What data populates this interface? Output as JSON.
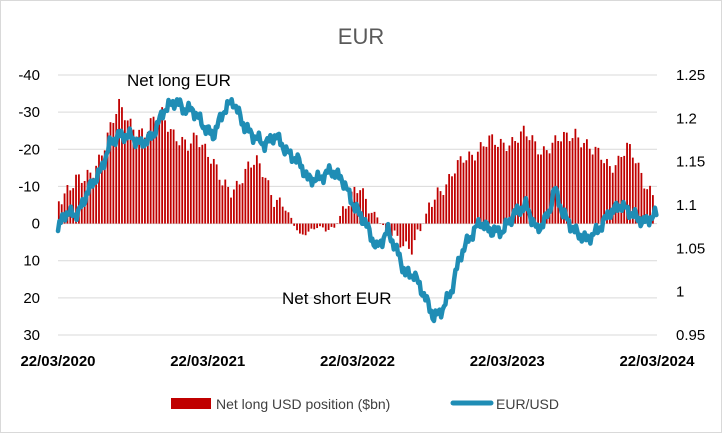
{
  "chart_data": {
    "type": "bar+line",
    "title": "EUR",
    "x_tick_labels": [
      "22/03/2020",
      "22/03/2021",
      "22/03/2022",
      "22/03/2023",
      "22/03/2024"
    ],
    "x_range": [
      "2020-03-22",
      "2024-03-22"
    ],
    "left_axis": {
      "ticks": [
        -40,
        -30,
        -20,
        -10,
        0,
        10,
        20,
        30
      ],
      "tick_labels": [
        "-40",
        "-30",
        "-20",
        "-10",
        "0",
        "10",
        "20",
        "30"
      ],
      "range": [
        -40,
        30
      ],
      "inverted": true
    },
    "right_axis": {
      "ticks": [
        0.95,
        1.0,
        1.05,
        1.1,
        1.15,
        1.2,
        1.25
      ],
      "tick_labels": [
        "0.95",
        "1",
        "1.05",
        "1.1",
        "1.15",
        "1.2",
        "1.25"
      ],
      "range": [
        0.95,
        1.25
      ]
    },
    "annotations": [
      "Net long EUR",
      "Net short EUR"
    ],
    "legend_position": "bottom",
    "gridlines": "horizontal",
    "series": [
      {
        "name": "Net long USD position ($bn)",
        "type": "bar",
        "axis": "left",
        "color": "#c00000",
        "x": [
          "2020-03-24",
          "2020-04-14",
          "2020-05-05",
          "2020-05-26",
          "2020-06-16",
          "2020-07-07",
          "2020-07-28",
          "2020-08-18",
          "2020-09-08",
          "2020-09-29",
          "2020-10-20",
          "2020-11-10",
          "2020-12-01",
          "2020-12-22",
          "2021-01-12",
          "2021-02-02",
          "2021-02-23",
          "2021-03-16",
          "2021-04-06",
          "2021-04-27",
          "2021-05-18",
          "2021-06-08",
          "2021-06-29",
          "2021-07-20",
          "2021-08-10",
          "2021-08-31",
          "2021-09-21",
          "2021-10-12",
          "2021-11-02",
          "2021-11-23",
          "2021-12-14",
          "2022-01-04",
          "2022-01-25",
          "2022-02-15",
          "2022-03-08",
          "2022-03-29",
          "2022-04-19",
          "2022-05-10",
          "2022-05-31",
          "2022-06-21",
          "2022-07-12",
          "2022-08-02",
          "2022-08-23",
          "2022-09-13",
          "2022-10-04",
          "2022-10-25",
          "2022-11-15",
          "2022-12-06",
          "2022-12-27",
          "2023-01-17",
          "2023-02-07",
          "2023-02-28",
          "2023-03-21",
          "2023-04-11",
          "2023-05-02",
          "2023-05-23",
          "2023-06-13",
          "2023-07-04",
          "2023-07-25",
          "2023-08-15",
          "2023-09-05",
          "2023-09-26",
          "2023-10-17",
          "2023-11-07",
          "2023-11-28",
          "2023-12-19",
          "2024-01-09",
          "2024-01-30",
          "2024-02-20",
          "2024-03-12"
        ],
        "values": [
          -6,
          -10,
          -12,
          -11,
          -14,
          -20,
          -26,
          -31,
          -28,
          -26,
          -24,
          -27,
          -30,
          -26,
          -22,
          -20,
          -24,
          -21,
          -16,
          -10,
          -9,
          -12,
          -15,
          -16,
          -13,
          -7,
          -5,
          -1,
          3,
          2,
          1,
          2,
          1,
          -4,
          -7,
          -9,
          -5,
          -2,
          2,
          4,
          5,
          6,
          2,
          -4,
          -9,
          -11,
          -14,
          -17,
          -19,
          -21,
          -22,
          -21,
          -22,
          -23,
          -24,
          -22,
          -20,
          -21,
          -22,
          -23,
          -25,
          -22,
          -19,
          -18,
          -16,
          -17,
          -20,
          -17,
          -12,
          -8
        ],
        "note": "bars are drawn at roughly weekly frequency between these sampled points"
      },
      {
        "name": "EUR/USD",
        "type": "line",
        "axis": "right",
        "color": "#1f8db5",
        "x": [
          "2020-03-22",
          "2020-04-05",
          "2020-05-10",
          "2020-06-07",
          "2020-07-05",
          "2020-07-26",
          "2020-08-16",
          "2020-09-13",
          "2020-10-11",
          "2020-11-08",
          "2020-12-06",
          "2021-01-03",
          "2021-01-24",
          "2021-02-14",
          "2021-03-14",
          "2021-04-04",
          "2021-05-02",
          "2021-05-23",
          "2021-06-20",
          "2021-07-11",
          "2021-08-08",
          "2021-09-05",
          "2021-10-03",
          "2021-10-31",
          "2021-11-21",
          "2021-12-19",
          "2022-01-16",
          "2022-02-13",
          "2022-03-13",
          "2022-04-10",
          "2022-05-08",
          "2022-06-05",
          "2022-07-03",
          "2022-07-17",
          "2022-08-07",
          "2022-08-28",
          "2022-09-25",
          "2022-10-16",
          "2022-11-06",
          "2022-11-27",
          "2022-12-18",
          "2023-01-15",
          "2023-02-12",
          "2023-03-12",
          "2023-04-09",
          "2023-05-07",
          "2023-06-04",
          "2023-07-02",
          "2023-07-16",
          "2023-08-06",
          "2023-09-03",
          "2023-10-01",
          "2023-10-29",
          "2023-11-26",
          "2023-12-24",
          "2024-01-21",
          "2024-02-18",
          "2024-03-22"
        ],
        "values": [
          1.07,
          1.09,
          1.09,
          1.12,
          1.14,
          1.17,
          1.18,
          1.18,
          1.17,
          1.18,
          1.21,
          1.22,
          1.21,
          1.21,
          1.19,
          1.18,
          1.21,
          1.22,
          1.19,
          1.18,
          1.17,
          1.18,
          1.16,
          1.15,
          1.13,
          1.13,
          1.14,
          1.13,
          1.1,
          1.08,
          1.05,
          1.07,
          1.04,
          1.02,
          1.02,
          1.0,
          0.97,
          0.98,
          1.0,
          1.04,
          1.06,
          1.08,
          1.07,
          1.07,
          1.09,
          1.1,
          1.07,
          1.09,
          1.12,
          1.09,
          1.07,
          1.06,
          1.07,
          1.09,
          1.1,
          1.09,
          1.08,
          1.09
        ]
      }
    ]
  }
}
